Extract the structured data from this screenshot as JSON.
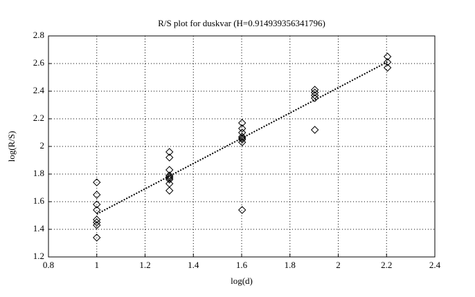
{
  "chart_data": {
    "type": "scatter",
    "title": "R/S plot for duskvar (H=0.914939356341796)",
    "x_label": "log(d)",
    "y_label": "log(R/S)",
    "x": [
      1,
      1,
      1,
      1,
      1,
      1,
      1,
      1,
      1.301,
      1.301,
      1.301,
      1.301,
      1.301,
      1.301,
      1.301,
      1.301,
      1.301,
      1.602,
      1.602,
      1.602,
      1.602,
      1.602,
      1.602,
      1.602,
      1.602,
      1.903,
      1.903,
      1.903,
      1.903,
      1.903,
      2.204,
      2.204,
      2.204
    ],
    "y": [
      1.74,
      1.65,
      1.58,
      1.54,
      1.47,
      1.45,
      1.43,
      1.34,
      1.96,
      1.92,
      1.83,
      1.79,
      1.78,
      1.77,
      1.76,
      1.73,
      1.68,
      2.17,
      2.13,
      2.1,
      2.07,
      2.06,
      2.05,
      2.03,
      1.54,
      2.41,
      2.39,
      2.37,
      2.35,
      2.12,
      2.65,
      2.61,
      2.57
    ],
    "color": "#000000",
    "fit": {
      "x": [
        1,
        2.204
      ],
      "y": [
        1.51,
        2.612
      ]
    },
    "xlim": [
      0.8,
      2.4
    ],
    "ylim": [
      1.2,
      2.8
    ],
    "xticks": [
      0.8,
      1,
      1.2,
      1.4,
      1.6,
      1.8,
      2,
      2.2,
      2.4
    ],
    "yticks": [
      1.2,
      1.4,
      1.6,
      1.8,
      2,
      2.2,
      2.4,
      2.6,
      2.8
    ],
    "grid": true
  }
}
